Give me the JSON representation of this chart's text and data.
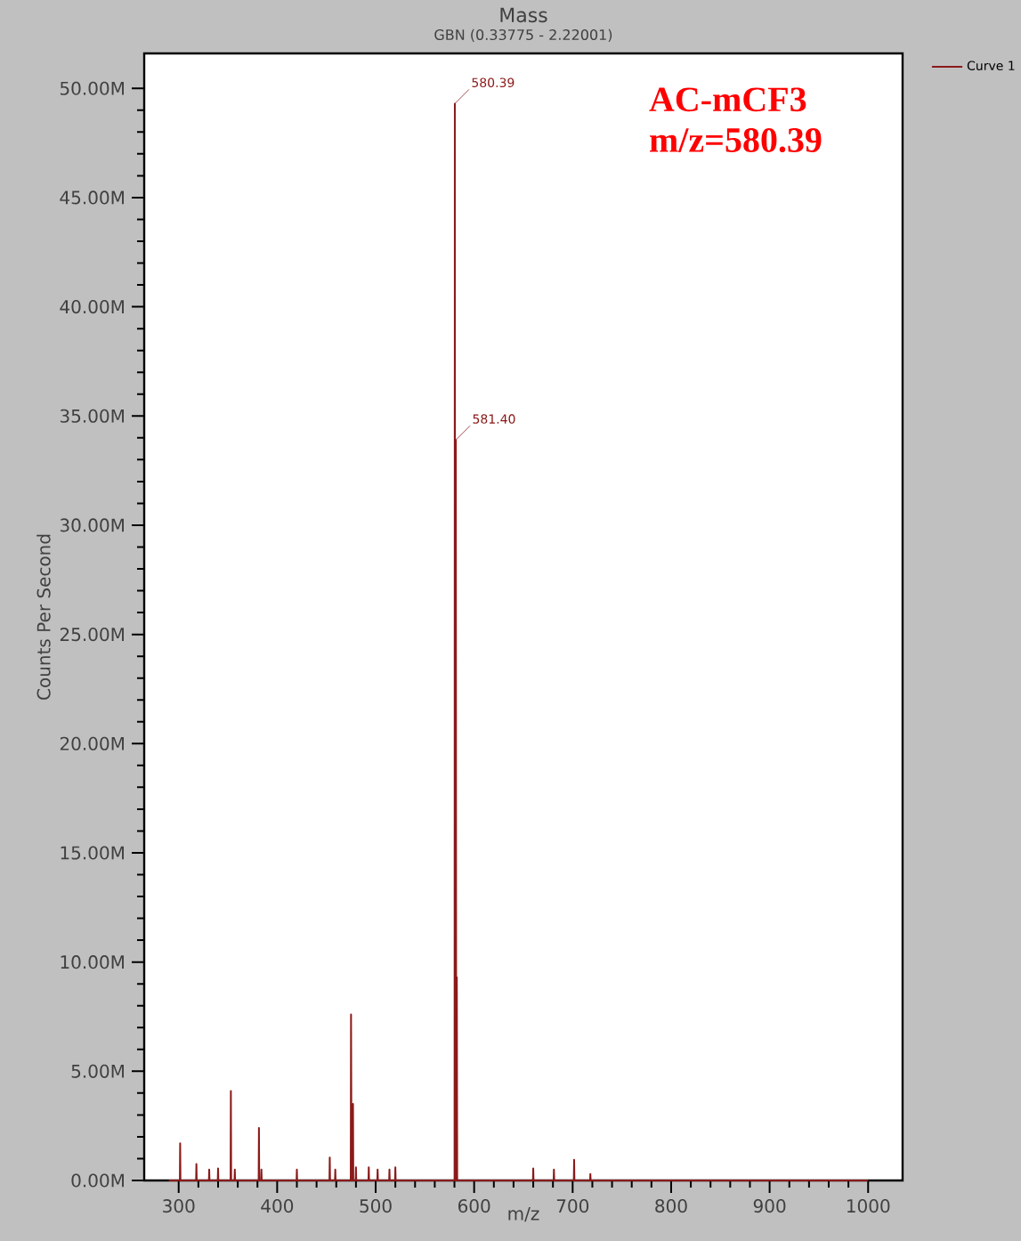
{
  "chart_data": {
    "type": "line",
    "title": "Mass",
    "subtitle": "GBN (0.33775 - 2.22001)",
    "xlabel": "m/z",
    "ylabel": "Counts Per Second",
    "xlim": [
      265,
      1035
    ],
    "ylim": [
      0,
      51.6
    ],
    "xticks": [
      300,
      400,
      500,
      600,
      700,
      800,
      900,
      1000
    ],
    "yticks": [
      {
        "value": 0,
        "label": "0.00M"
      },
      {
        "value": 5,
        "label": "5.00M"
      },
      {
        "value": 10,
        "label": "10.00M"
      },
      {
        "value": 15,
        "label": "15.00M"
      },
      {
        "value": 20,
        "label": "20.00M"
      },
      {
        "value": 25,
        "label": "25.00M"
      },
      {
        "value": 30,
        "label": "30.00M"
      },
      {
        "value": 35,
        "label": "35.00M"
      },
      {
        "value": 40,
        "label": "40.00M"
      },
      {
        "value": 45,
        "label": "45.00M"
      },
      {
        "value": 50,
        "label": "50.00M"
      }
    ],
    "legend": "right",
    "grid": false,
    "series": [
      {
        "name": "Curve 1",
        "color": "#8b1a1a",
        "x": [
          290,
          301.2,
          301.5,
          301.8,
          317.7,
          318,
          318.3,
          330.7,
          331,
          331.3,
          339.7,
          340,
          340.3,
          352.7,
          353,
          353.3,
          356.7,
          357,
          357.3,
          381.2,
          381.5,
          381.8,
          383.7,
          384,
          384.3,
          419.7,
          420,
          420.3,
          453.1,
          453.4,
          453.7,
          458.7,
          459,
          459.3,
          474.7,
          475,
          475.5,
          476.5,
          477,
          477.3,
          479.7,
          480,
          480.3,
          492.7,
          493,
          493.3,
          501.7,
          502,
          502.3,
          513.7,
          514,
          514.3,
          519.7,
          520,
          520.3,
          580.1,
          580.39,
          580.8,
          581.1,
          581.4,
          581.8,
          582.1,
          582.4,
          582.8,
          659.7,
          660,
          660.3,
          680.7,
          681,
          681.3,
          701.2,
          701.5,
          701.8,
          717.7,
          718,
          718.3,
          1000
        ],
        "values": [
          0,
          0,
          1.7,
          0,
          0,
          0.75,
          0,
          0,
          0.5,
          0,
          0,
          0.55,
          0,
          0,
          4.1,
          0,
          0,
          0.5,
          0,
          0,
          2.4,
          0,
          0,
          0.5,
          0,
          0,
          0.5,
          0,
          0,
          1.05,
          0,
          0,
          0.5,
          0,
          0,
          7.6,
          0,
          0,
          3.5,
          0,
          0,
          0.6,
          0,
          0,
          0.6,
          0,
          0,
          0.5,
          0,
          0,
          0.5,
          0,
          0,
          0.6,
          0,
          0,
          49.3,
          0,
          0,
          33.9,
          0,
          0,
          9.3,
          0,
          0,
          0.55,
          0,
          0,
          0.5,
          0,
          0,
          0.95,
          0,
          0,
          0.3,
          0,
          0
        ]
      }
    ],
    "annotations": [
      {
        "text": "580.39",
        "x": 580.39,
        "y": 49.3
      },
      {
        "text": "581.40",
        "x": 581.4,
        "y": 33.9
      },
      "AC-mCF3",
      "m/z=580.39"
    ]
  }
}
